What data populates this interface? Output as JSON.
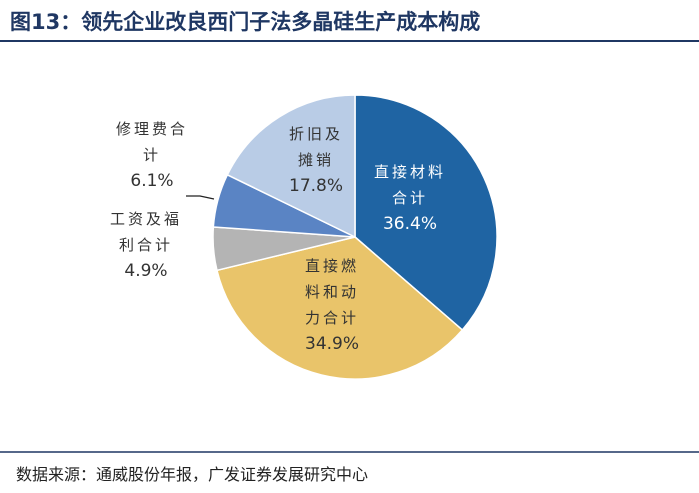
{
  "chart_data": {
    "type": "pie",
    "title": "图13：领先企业改良西门子法多晶硅生产成本构成",
    "categories": [
      "直接材料合计",
      "直接燃料和动力合计",
      "工资及福利合计",
      "修理费合计",
      "折旧及摊销"
    ],
    "values": [
      36.4,
      34.9,
      4.9,
      6.1,
      17.8
    ],
    "value_labels": [
      "36.4%",
      "34.9%",
      "4.9%",
      "6.1%",
      "17.8%"
    ],
    "colors": [
      "#1f64a3",
      "#e9c46a",
      "#b4b4b4",
      "#5a84c4",
      "#b9cce6"
    ],
    "source": "数据来源：通威股份年报，广发证券发展研究中心"
  }
}
